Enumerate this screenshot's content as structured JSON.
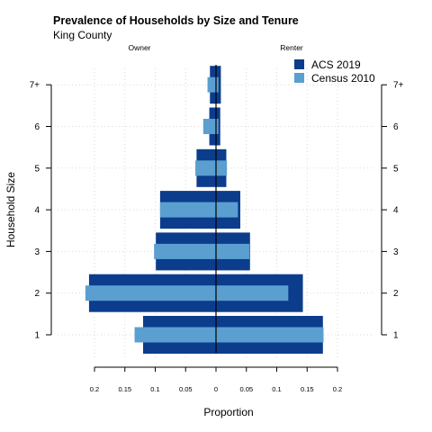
{
  "chart_data": {
    "type": "bar",
    "subtype": "population-pyramid",
    "title": "Prevalence of Households by Size and Tenure",
    "subtitle": "King County",
    "left_group": "Owner",
    "right_group": "Renter",
    "xlabel": "Proportion",
    "ylabel": "Household Size",
    "categories": [
      "1",
      "2",
      "3",
      "4",
      "5",
      "6",
      "7+"
    ],
    "x_ticks": [
      0.2,
      0.15,
      0.1,
      0.05,
      0,
      0.05,
      0.1,
      0.15,
      0.2
    ],
    "x_tick_labels": [
      "0.2",
      "0.15",
      "0.1",
      "0.05",
      "0",
      "0.05",
      "0.1",
      "0.15",
      "0.2"
    ],
    "xlim": [
      -0.2,
      0.2
    ],
    "grid": true,
    "legend_position": "top-right",
    "series": [
      {
        "name": "ACS 2019",
        "color": "#0b3d8c",
        "owner": [
          0.12,
          0.209,
          0.099,
          0.092,
          0.032,
          0.011,
          0.01
        ],
        "renter": [
          0.176,
          0.143,
          0.056,
          0.04,
          0.017,
          0.007,
          0.008
        ]
      },
      {
        "name": "Census 2010",
        "color": "#5b9fd1",
        "owner": [
          0.134,
          0.215,
          0.102,
          0.092,
          0.034,
          0.021,
          0.014
        ],
        "renter": [
          0.177,
          0.119,
          0.055,
          0.036,
          0.018,
          0.004,
          0.004
        ]
      }
    ]
  }
}
